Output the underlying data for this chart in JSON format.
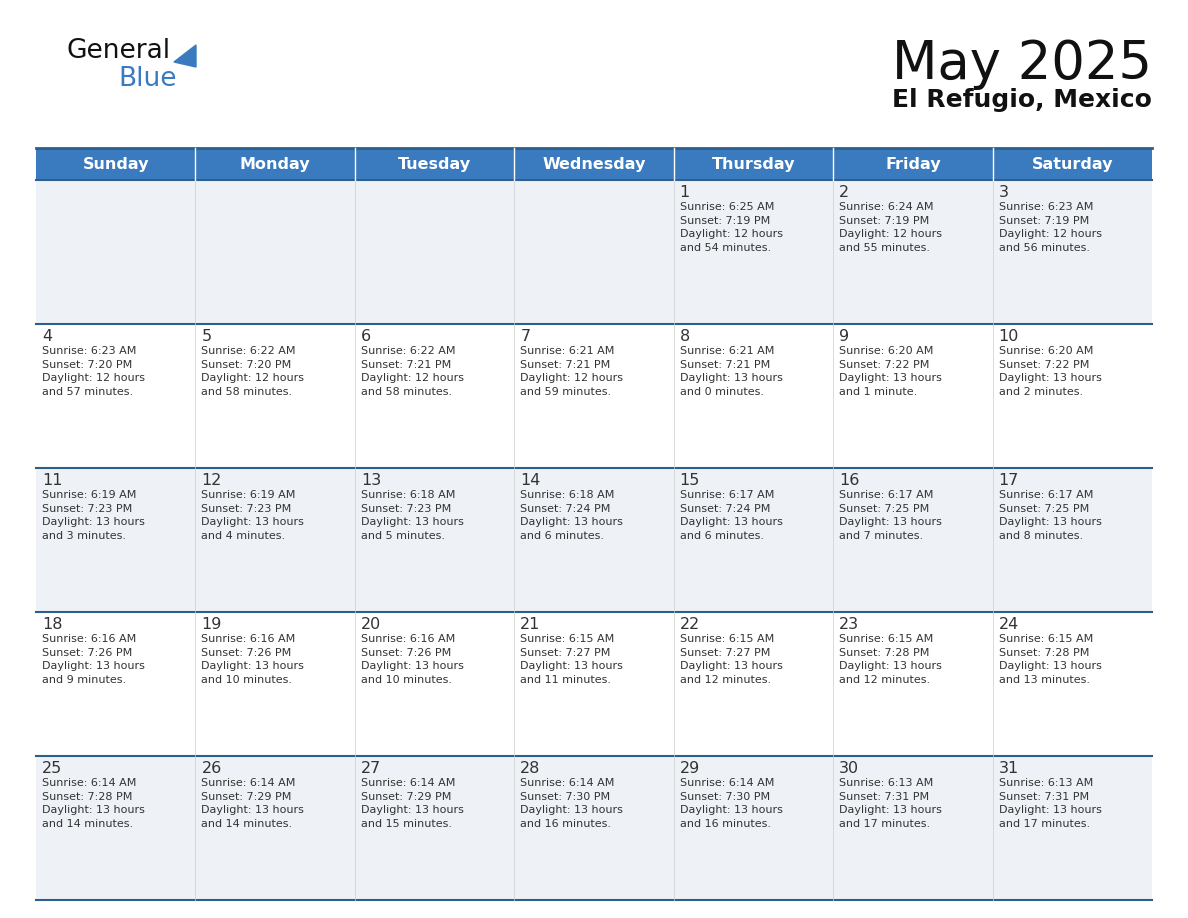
{
  "title": "May 2025",
  "subtitle": "El Refugio, Mexico",
  "header_color": "#3a7abf",
  "header_text_color": "#ffffff",
  "row_bg_even": "#eef2f7",
  "row_bg_odd": "#ffffff",
  "border_color": "#2e5f8a",
  "text_color": "#333333",
  "day_names": [
    "Sunday",
    "Monday",
    "Tuesday",
    "Wednesday",
    "Thursday",
    "Friday",
    "Saturday"
  ],
  "weeks": [
    [
      {
        "day": "",
        "info": ""
      },
      {
        "day": "",
        "info": ""
      },
      {
        "day": "",
        "info": ""
      },
      {
        "day": "",
        "info": ""
      },
      {
        "day": "1",
        "info": "Sunrise: 6:25 AM\nSunset: 7:19 PM\nDaylight: 12 hours\nand 54 minutes."
      },
      {
        "day": "2",
        "info": "Sunrise: 6:24 AM\nSunset: 7:19 PM\nDaylight: 12 hours\nand 55 minutes."
      },
      {
        "day": "3",
        "info": "Sunrise: 6:23 AM\nSunset: 7:19 PM\nDaylight: 12 hours\nand 56 minutes."
      }
    ],
    [
      {
        "day": "4",
        "info": "Sunrise: 6:23 AM\nSunset: 7:20 PM\nDaylight: 12 hours\nand 57 minutes."
      },
      {
        "day": "5",
        "info": "Sunrise: 6:22 AM\nSunset: 7:20 PM\nDaylight: 12 hours\nand 58 minutes."
      },
      {
        "day": "6",
        "info": "Sunrise: 6:22 AM\nSunset: 7:21 PM\nDaylight: 12 hours\nand 58 minutes."
      },
      {
        "day": "7",
        "info": "Sunrise: 6:21 AM\nSunset: 7:21 PM\nDaylight: 12 hours\nand 59 minutes."
      },
      {
        "day": "8",
        "info": "Sunrise: 6:21 AM\nSunset: 7:21 PM\nDaylight: 13 hours\nand 0 minutes."
      },
      {
        "day": "9",
        "info": "Sunrise: 6:20 AM\nSunset: 7:22 PM\nDaylight: 13 hours\nand 1 minute."
      },
      {
        "day": "10",
        "info": "Sunrise: 6:20 AM\nSunset: 7:22 PM\nDaylight: 13 hours\nand 2 minutes."
      }
    ],
    [
      {
        "day": "11",
        "info": "Sunrise: 6:19 AM\nSunset: 7:23 PM\nDaylight: 13 hours\nand 3 minutes."
      },
      {
        "day": "12",
        "info": "Sunrise: 6:19 AM\nSunset: 7:23 PM\nDaylight: 13 hours\nand 4 minutes."
      },
      {
        "day": "13",
        "info": "Sunrise: 6:18 AM\nSunset: 7:23 PM\nDaylight: 13 hours\nand 5 minutes."
      },
      {
        "day": "14",
        "info": "Sunrise: 6:18 AM\nSunset: 7:24 PM\nDaylight: 13 hours\nand 6 minutes."
      },
      {
        "day": "15",
        "info": "Sunrise: 6:17 AM\nSunset: 7:24 PM\nDaylight: 13 hours\nand 6 minutes."
      },
      {
        "day": "16",
        "info": "Sunrise: 6:17 AM\nSunset: 7:25 PM\nDaylight: 13 hours\nand 7 minutes."
      },
      {
        "day": "17",
        "info": "Sunrise: 6:17 AM\nSunset: 7:25 PM\nDaylight: 13 hours\nand 8 minutes."
      }
    ],
    [
      {
        "day": "18",
        "info": "Sunrise: 6:16 AM\nSunset: 7:26 PM\nDaylight: 13 hours\nand 9 minutes."
      },
      {
        "day": "19",
        "info": "Sunrise: 6:16 AM\nSunset: 7:26 PM\nDaylight: 13 hours\nand 10 minutes."
      },
      {
        "day": "20",
        "info": "Sunrise: 6:16 AM\nSunset: 7:26 PM\nDaylight: 13 hours\nand 10 minutes."
      },
      {
        "day": "21",
        "info": "Sunrise: 6:15 AM\nSunset: 7:27 PM\nDaylight: 13 hours\nand 11 minutes."
      },
      {
        "day": "22",
        "info": "Sunrise: 6:15 AM\nSunset: 7:27 PM\nDaylight: 13 hours\nand 12 minutes."
      },
      {
        "day": "23",
        "info": "Sunrise: 6:15 AM\nSunset: 7:28 PM\nDaylight: 13 hours\nand 12 minutes."
      },
      {
        "day": "24",
        "info": "Sunrise: 6:15 AM\nSunset: 7:28 PM\nDaylight: 13 hours\nand 13 minutes."
      }
    ],
    [
      {
        "day": "25",
        "info": "Sunrise: 6:14 AM\nSunset: 7:28 PM\nDaylight: 13 hours\nand 14 minutes."
      },
      {
        "day": "26",
        "info": "Sunrise: 6:14 AM\nSunset: 7:29 PM\nDaylight: 13 hours\nand 14 minutes."
      },
      {
        "day": "27",
        "info": "Sunrise: 6:14 AM\nSunset: 7:29 PM\nDaylight: 13 hours\nand 15 minutes."
      },
      {
        "day": "28",
        "info": "Sunrise: 6:14 AM\nSunset: 7:30 PM\nDaylight: 13 hours\nand 16 minutes."
      },
      {
        "day": "29",
        "info": "Sunrise: 6:14 AM\nSunset: 7:30 PM\nDaylight: 13 hours\nand 16 minutes."
      },
      {
        "day": "30",
        "info": "Sunrise: 6:13 AM\nSunset: 7:31 PM\nDaylight: 13 hours\nand 17 minutes."
      },
      {
        "day": "31",
        "info": "Sunrise: 6:13 AM\nSunset: 7:31 PM\nDaylight: 13 hours\nand 17 minutes."
      }
    ]
  ]
}
